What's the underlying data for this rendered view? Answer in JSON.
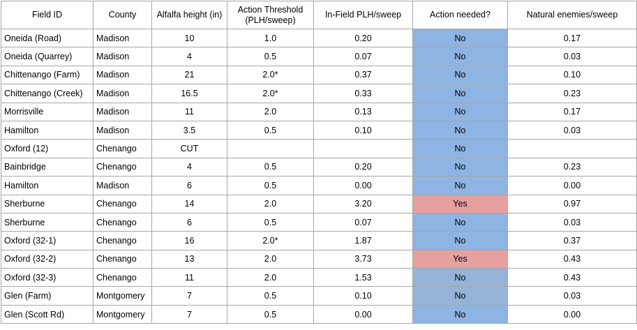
{
  "columns": [
    "Field ID",
    "County",
    "Alfalfa height (in)",
    "Action Threshold (PLH/sweep)",
    "In-Field PLH/sweep",
    "Action needed?",
    "Natural enemies/sweep"
  ],
  "colors": {
    "no": "#8eb4e3",
    "yes": "#e6a0a0",
    "no_muted": "#95b3d7",
    "border": "#a6a6a6"
  },
  "rows": [
    {
      "field_id": "Oneida (Road)",
      "county": "Madison",
      "height": "10",
      "threshold": "1.0",
      "plh": "0.20",
      "action": "No",
      "enemies": "0.17"
    },
    {
      "field_id": "Oneida (Quarrey)",
      "county": "Madison",
      "height": "4",
      "threshold": "0.5",
      "plh": "0.07",
      "action": "No",
      "enemies": "0.03"
    },
    {
      "field_id": "Chittenango (Farm)",
      "county": "Madison",
      "height": "21",
      "threshold": "2.0*",
      "plh": "0.37",
      "action": "No",
      "enemies": "0.10"
    },
    {
      "field_id": "Chittenango (Creek)",
      "county": "Madison",
      "height": "16.5",
      "threshold": "2.0*",
      "plh": "0.33",
      "action": "No",
      "enemies": "0.23"
    },
    {
      "field_id": "Morrisville",
      "county": "Madison",
      "height": "11",
      "threshold": "2.0",
      "plh": "0.13",
      "action": "No",
      "enemies": "0.17"
    },
    {
      "field_id": "Hamilton",
      "county": "Madison",
      "height": "3.5",
      "threshold": "0.5",
      "plh": "0.10",
      "action": "No",
      "enemies": "0.03"
    },
    {
      "field_id": "Oxford (12)",
      "county": "Chenango",
      "height": "CUT",
      "threshold": "",
      "plh": "",
      "action": "No",
      "enemies": ""
    },
    {
      "field_id": "Bainbridge",
      "county": "Chenango",
      "height": "4",
      "threshold": "0.5",
      "plh": "0.20",
      "action": "No",
      "enemies": "0.23"
    },
    {
      "field_id": "Hamilton",
      "county": "Madison",
      "height": "6",
      "threshold": "0.5",
      "plh": "0.00",
      "action": "No",
      "enemies": "0.00"
    },
    {
      "field_id": "Sherburne",
      "county": "Chenango",
      "height": "14",
      "threshold": "2.0",
      "plh": "3.20",
      "action": "Yes",
      "enemies": "0.97"
    },
    {
      "field_id": "Sherburne",
      "county": "Chenango",
      "height": "6",
      "threshold": "0.5",
      "plh": "0.07",
      "action": "No",
      "enemies": "0.03"
    },
    {
      "field_id": "Oxford (32-1)",
      "county": "Chenango",
      "height": "16",
      "threshold": "2.0*",
      "plh": "1.87",
      "action": "No",
      "enemies": "0.37"
    },
    {
      "field_id": "Oxford (32-2)",
      "county": "Chenango",
      "height": "13",
      "threshold": "2.0",
      "plh": "3.73",
      "action": "Yes",
      "enemies": "0.43"
    },
    {
      "field_id": "Oxford (32-3)",
      "county": "Chenango",
      "height": "11",
      "threshold": "2.0",
      "plh": "1.53",
      "action": "No",
      "enemies": "0.43"
    },
    {
      "field_id": "Glen (Farm)",
      "county": "Montgomery",
      "height": "7",
      "threshold": "0.5",
      "plh": "0.10",
      "action": "No",
      "enemies": "0.03"
    },
    {
      "field_id": "Glen (Scott Rd)",
      "county": "Montgomery",
      "height": "7",
      "threshold": "0.5",
      "plh": "0.00",
      "action": "No",
      "enemies": "0.00"
    }
  ]
}
